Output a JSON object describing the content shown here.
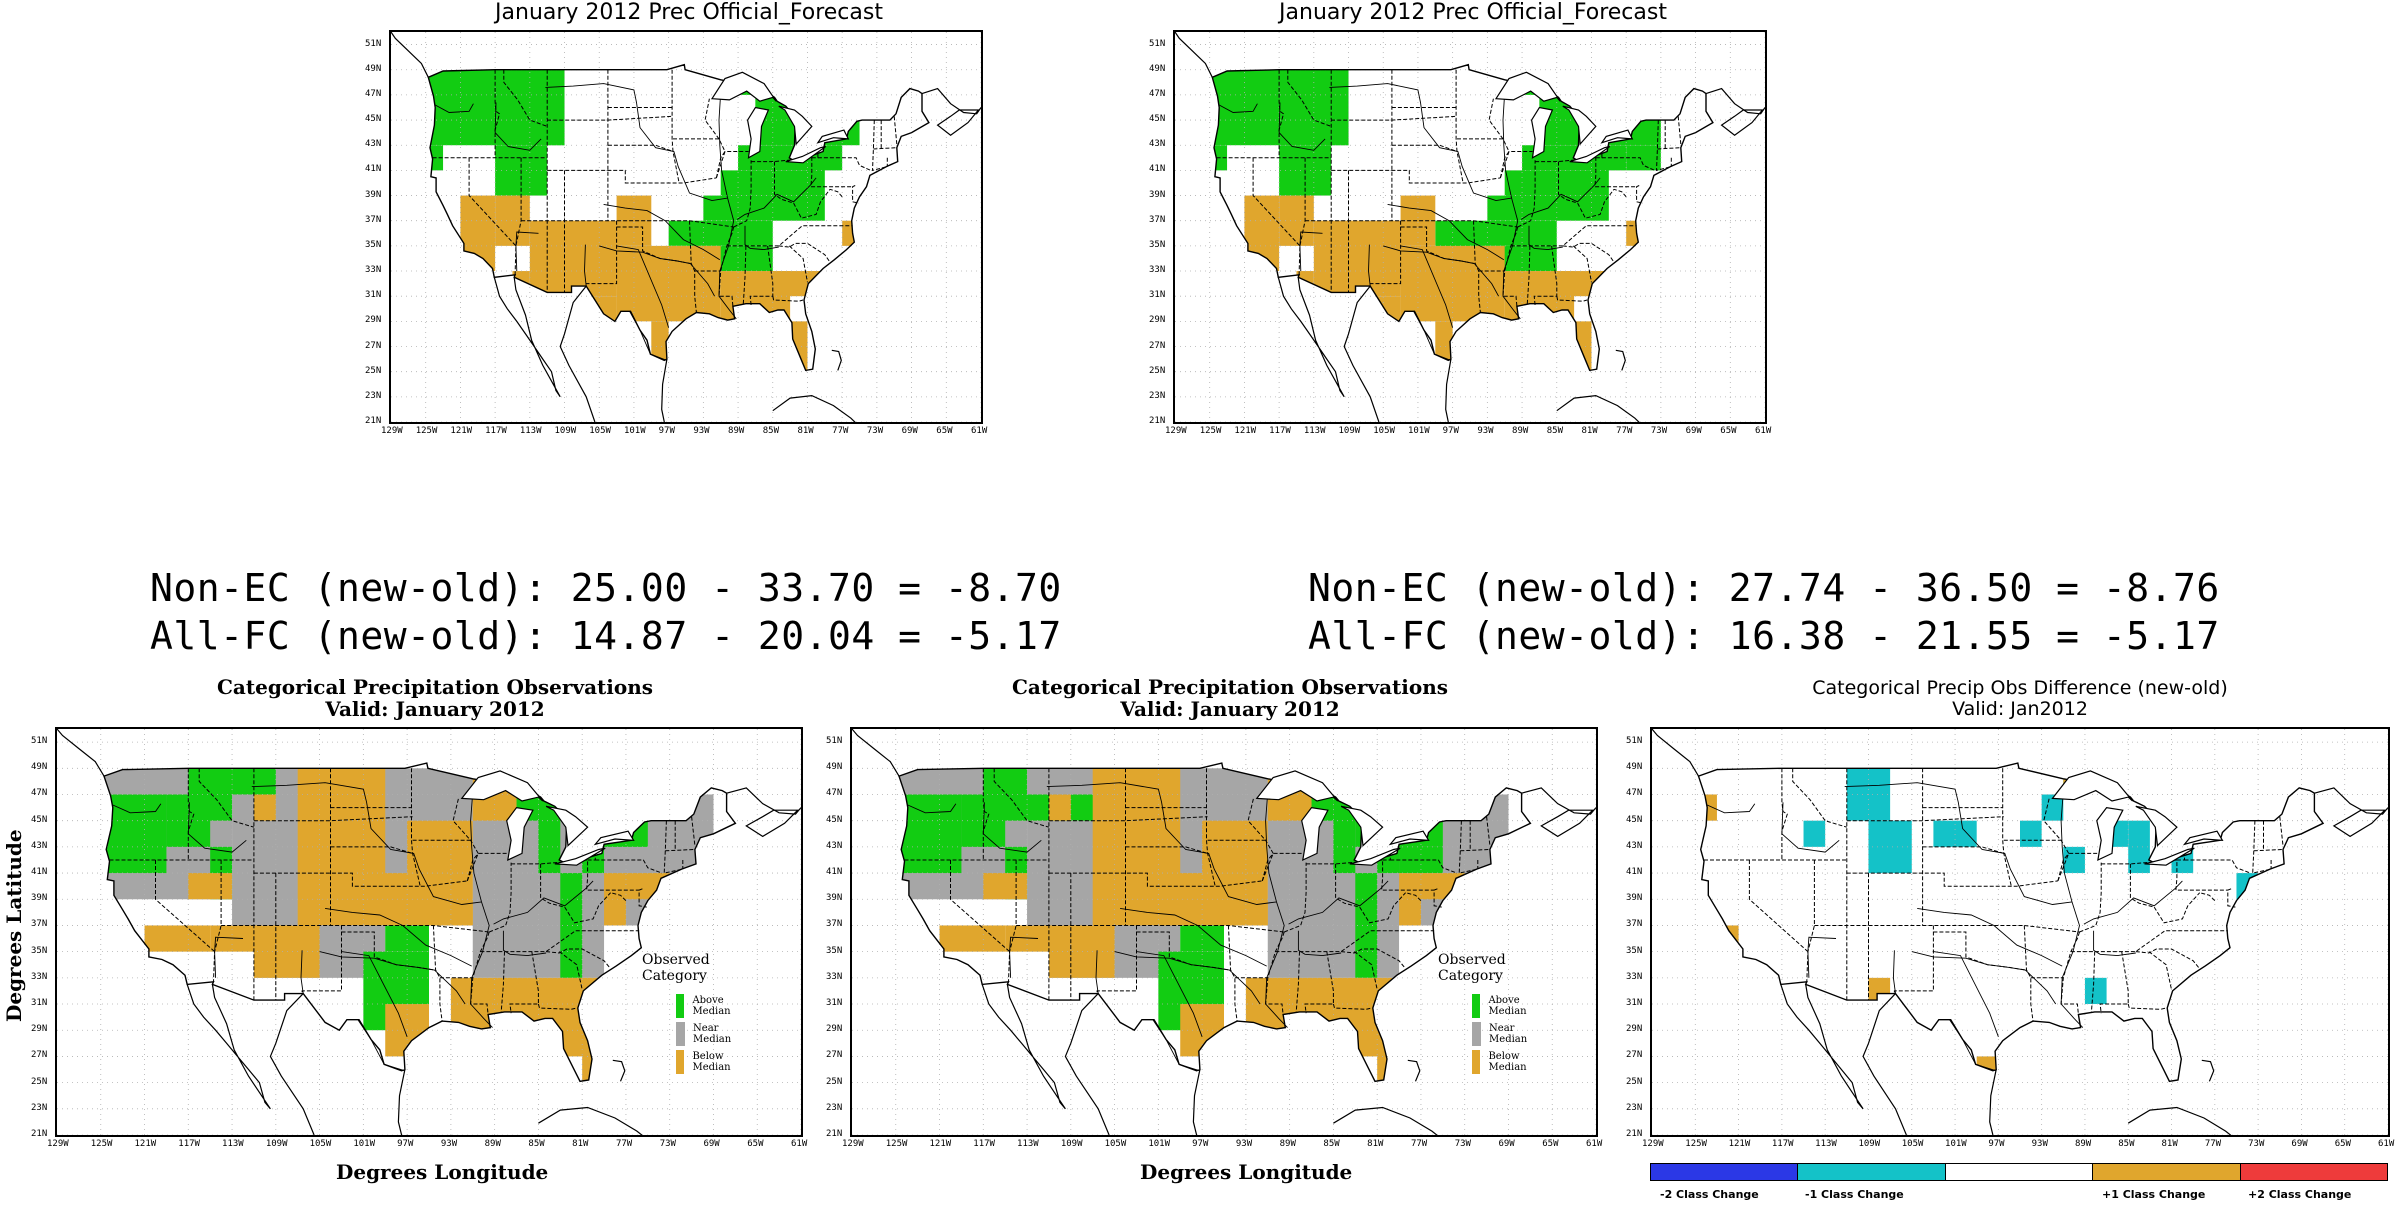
{
  "top_left": {
    "title": "January 2012 Prec Official_Forecast"
  },
  "top_right": {
    "title": "January 2012 Prec Official_Forecast"
  },
  "scores": {
    "left": {
      "non_ec": "Non-EC (new-old): 25.00 - 33.70 = -8.70",
      "all_fc": "All-FC (new-old): 14.87 - 20.04 = -5.17"
    },
    "right": {
      "non_ec": "Non-EC (new-old): 27.74 - 36.50 = -8.76",
      "all_fc": "All-FC (new-old): 16.38 - 21.55 = -5.17"
    }
  },
  "obs_left": {
    "title1": "Categorical Precipitation Observations",
    "title2": "Valid: January 2012",
    "ylabel": "Degrees Latitude",
    "xlabel": "Degrees Longitude",
    "legend": {
      "title": "Observed Category",
      "items": [
        {
          "label": "Above Median",
          "color": "#12cc12"
        },
        {
          "label": "Near Median",
          "color": "#a6a6a6"
        },
        {
          "label": "Below Median",
          "color": "#e0a62d"
        }
      ]
    }
  },
  "obs_middle": {
    "title1": "Categorical Precipitation Observations",
    "title2": "Valid: January 2012",
    "xlabel": "Degrees Longitude",
    "legend": {
      "title": "Observed Category",
      "items": [
        {
          "label": "Above Median",
          "color": "#12cc12"
        },
        {
          "label": "Near Median",
          "color": "#a6a6a6"
        },
        {
          "label": "Below Median",
          "color": "#e0a62d"
        }
      ]
    }
  },
  "diff": {
    "title1": "Categorical Precip Obs Difference (new-old)",
    "title2": "Valid: Jan2012",
    "colorbar": [
      {
        "label": "-2 Class Change",
        "color": "#2b38e6"
      },
      {
        "label": "-1 Class Change",
        "color": "#14c2c8"
      },
      {
        "label": "",
        "color": "#ffffff"
      },
      {
        "label": "+1 Class Change",
        "color": "#e0a62d"
      },
      {
        "label": "+2 Class Change",
        "color": "#ee3b3b"
      }
    ]
  },
  "axes": {
    "lat_ticks": [
      "51N",
      "49N",
      "47N",
      "45N",
      "43N",
      "41N",
      "39N",
      "37N",
      "35N",
      "33N",
      "31N",
      "29N",
      "27N",
      "25N",
      "23N",
      "21N"
    ],
    "lon_ticks": [
      "129W",
      "125W",
      "121W",
      "117W",
      "113W",
      "109W",
      "105W",
      "101W",
      "97W",
      "93W",
      "89W",
      "85W",
      "81W",
      "77W",
      "73W",
      "69W",
      "65W",
      "61W"
    ]
  },
  "colors": {
    "above": "#12cc12",
    "near": "#a6a6a6",
    "below": "#e0a62d",
    "diff_minus1": "#14c2c8",
    "diff_plus1": "#e0a62d"
  }
}
